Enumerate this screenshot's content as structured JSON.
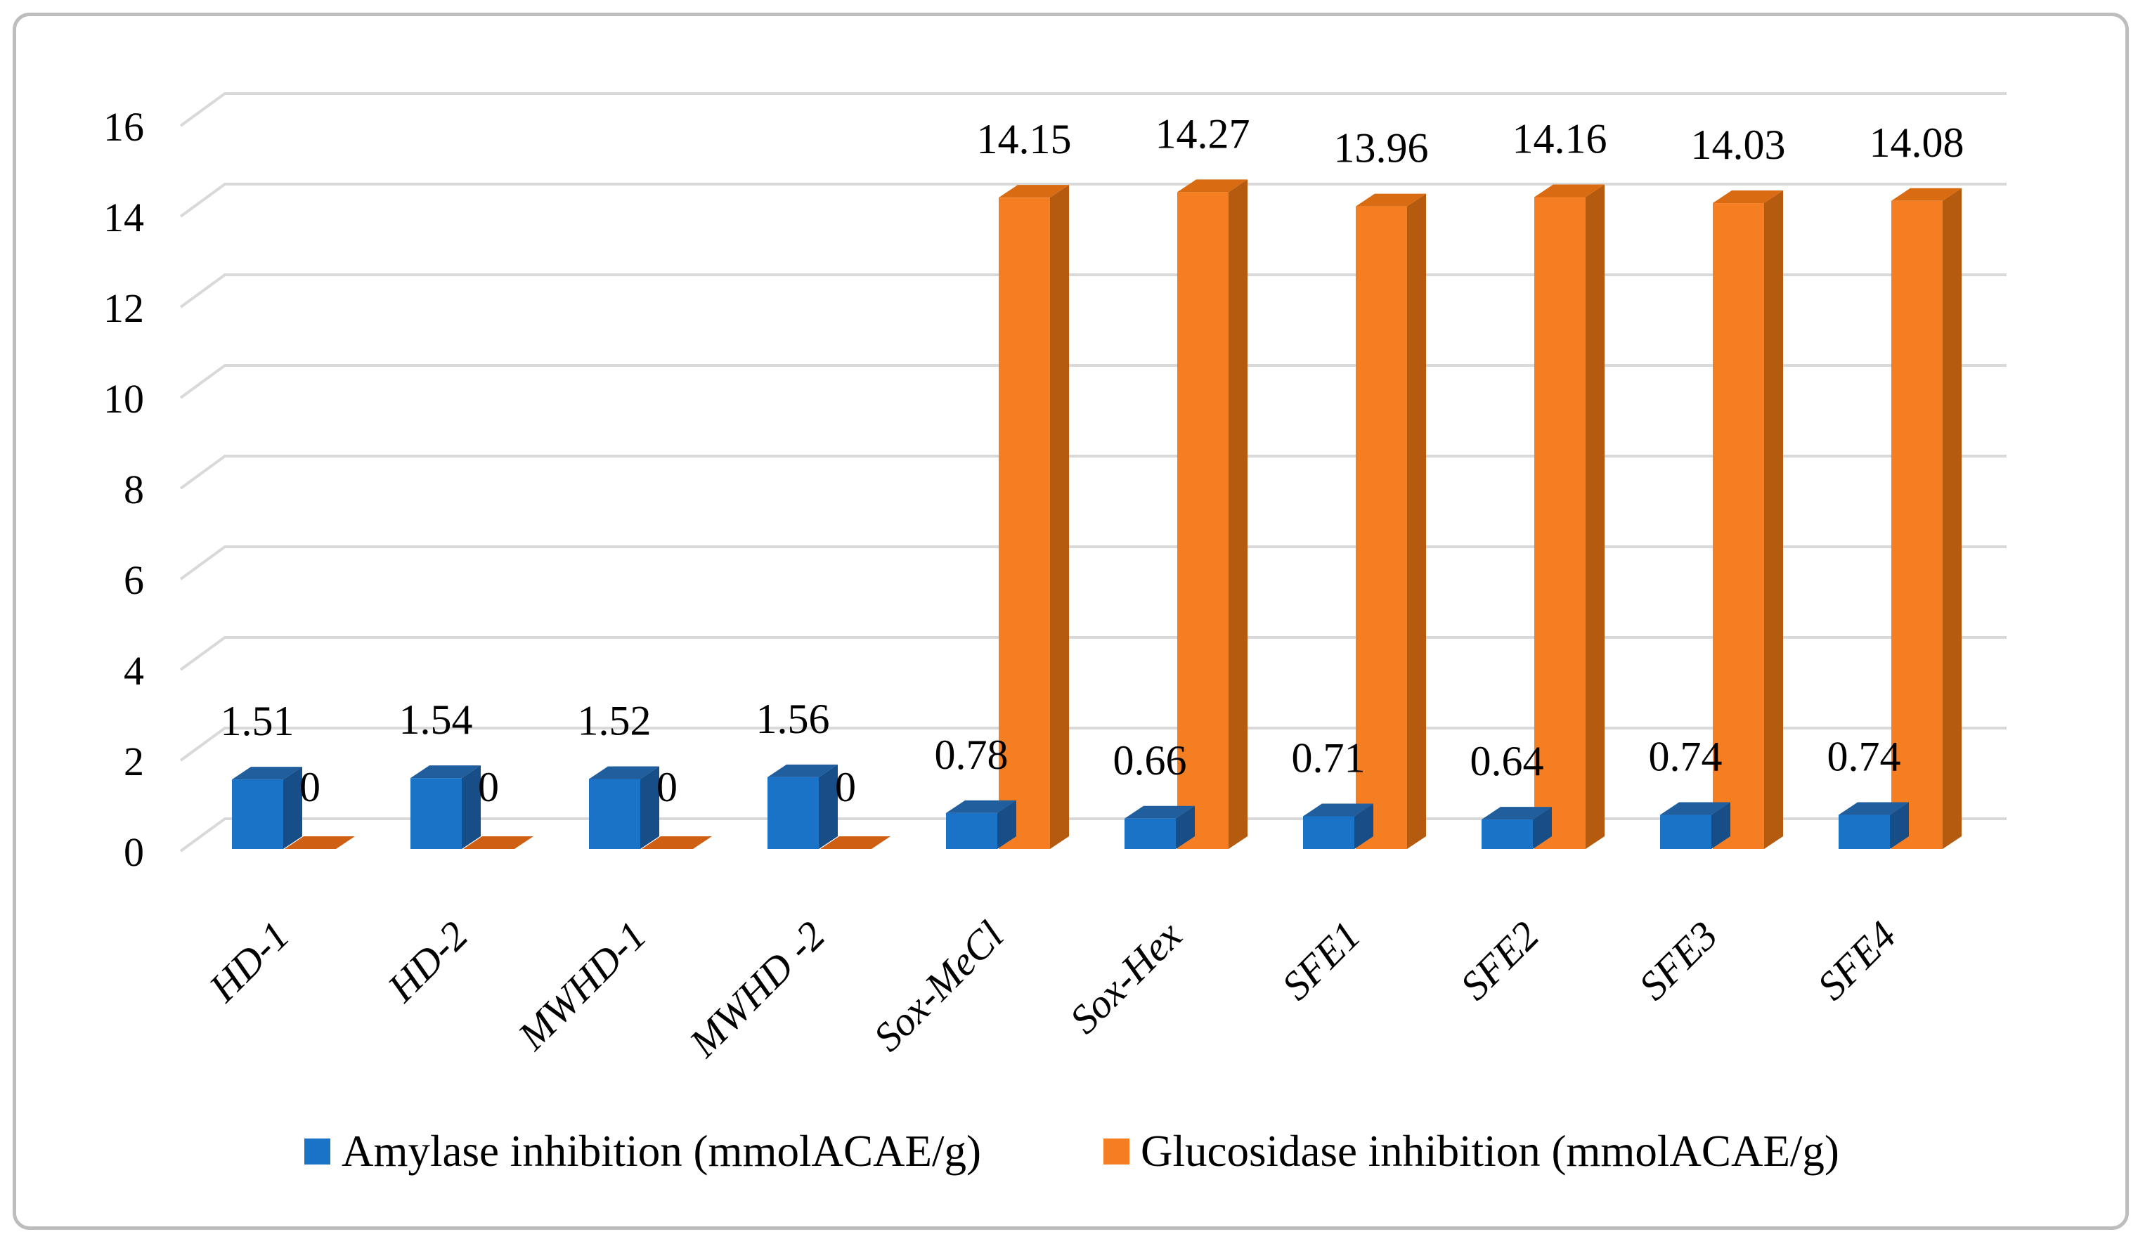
{
  "chart_data": {
    "type": "bar",
    "style": "3d-clustered-column",
    "title": "",
    "xlabel": "",
    "ylabel": "",
    "categories": [
      "HD-1",
      "HD-2",
      "MWHD-1",
      "MWHD -2",
      "Sox-MeCl",
      "Sox-Hex",
      "SFE1",
      "SFE2",
      "SFE3",
      "SFE4"
    ],
    "series": [
      {
        "name": "Amylase inhibition (mmolACAE/g)",
        "color": "#1B73C8",
        "values": [
          1.51,
          1.54,
          1.52,
          1.56,
          0.78,
          0.66,
          0.71,
          0.64,
          0.74,
          0.74
        ],
        "data_labels": [
          "1.51",
          "1.54",
          "1.52",
          "1.56",
          "0.78",
          "0.66",
          "0.71",
          "0.64",
          "0.74",
          "0.74"
        ]
      },
      {
        "name": "Glucosidase inhibition (mmolACAE/g)",
        "color": "#F57E23",
        "values": [
          0,
          0,
          0,
          0,
          14.15,
          14.27,
          13.96,
          14.16,
          14.03,
          14.08
        ],
        "data_labels": [
          "0",
          "0",
          "0",
          "0",
          "14.15",
          "14.27",
          "13.96",
          "14.16",
          "14.03",
          "14.08"
        ]
      }
    ],
    "ylim": [
      0,
      16
    ],
    "yticks": [
      0,
      2,
      4,
      6,
      8,
      10,
      12,
      14,
      16
    ],
    "grid": true,
    "legend_position": "bottom"
  },
  "legend": {
    "items": [
      {
        "label": "Amylase inhibition (mmolACAE/g)",
        "swatch_color": "#1B73C8"
      },
      {
        "label": "Glucosidase inhibition (mmolACAE/g)",
        "swatch_color": "#F57E23"
      }
    ]
  },
  "colors": {
    "amylase_front": "#1B73C8",
    "amylase_top": "#205E9E",
    "amylase_side": "#174E88",
    "glucosidase_front": "#F57E23",
    "glucosidase_top": "#D96C12",
    "glucosidase_side": "#B55B10",
    "glucosidase_flat": "#CE5F13",
    "gridline": "#D9D9D9",
    "frame_border": "#BDBDBD",
    "label_text": "#000000"
  }
}
